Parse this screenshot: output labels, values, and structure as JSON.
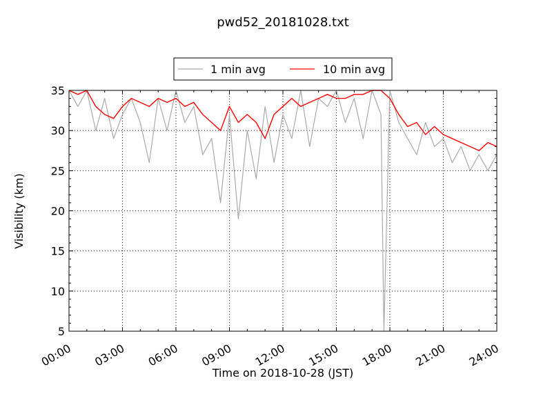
{
  "chart_data": {
    "type": "line",
    "title": "pwd52_20181028.txt",
    "xlabel": "Time on 2018-10-28 (JST)",
    "ylabel": "Visibility (km)",
    "xlim": [
      "2018-10-28 00:00",
      "2018-10-29 00:00"
    ],
    "ylim": [
      5,
      35
    ],
    "x_ticks": [
      "00:00",
      "03:00",
      "06:00",
      "09:00",
      "12:00",
      "15:00",
      "18:00",
      "21:00",
      "24:00"
    ],
    "y_ticks": [
      5,
      10,
      15,
      20,
      25,
      30,
      35
    ],
    "grid": true,
    "legend_position": "top-center",
    "series": [
      {
        "name": "1 min avg",
        "color": "#a9a9a9",
        "x": [
          "00:00",
          "00:30",
          "01:00",
          "01:30",
          "02:00",
          "02:30",
          "03:00",
          "03:30",
          "04:00",
          "04:30",
          "05:00",
          "05:30",
          "06:00",
          "06:30",
          "07:00",
          "07:30",
          "08:00",
          "08:30",
          "09:00",
          "09:30",
          "10:00",
          "10:30",
          "11:00",
          "11:30",
          "12:00",
          "12:30",
          "13:00",
          "13:30",
          "14:00",
          "14:30",
          "15:00",
          "15:30",
          "16:00",
          "16:30",
          "17:00",
          "17:30",
          "17:40",
          "18:00",
          "18:30",
          "19:00",
          "19:30",
          "20:00",
          "20:30",
          "21:00",
          "21:30",
          "22:00",
          "22:30",
          "23:00",
          "23:30",
          "24:00"
        ],
        "y": [
          35,
          33,
          35,
          30,
          34,
          29,
          32,
          34,
          31,
          26,
          34,
          30,
          35,
          31,
          33,
          27,
          29,
          21,
          32,
          19,
          30,
          24,
          33,
          26,
          32,
          29,
          35,
          28,
          34,
          33,
          35,
          31,
          34,
          29,
          35,
          32,
          5,
          35,
          31,
          29,
          27,
          31,
          28,
          29,
          26,
          28,
          25,
          27,
          25,
          27
        ]
      },
      {
        "name": "10 min avg",
        "color": "#ff0000",
        "x": [
          "00:00",
          "00:30",
          "01:00",
          "01:30",
          "02:00",
          "02:30",
          "03:00",
          "03:30",
          "04:00",
          "04:30",
          "05:00",
          "05:30",
          "06:00",
          "06:30",
          "07:00",
          "07:30",
          "08:00",
          "08:30",
          "09:00",
          "09:30",
          "10:00",
          "10:30",
          "11:00",
          "11:30",
          "12:00",
          "12:30",
          "13:00",
          "13:30",
          "14:00",
          "14:30",
          "15:00",
          "15:30",
          "16:00",
          "16:30",
          "17:00",
          "17:30",
          "18:00",
          "18:30",
          "19:00",
          "19:30",
          "20:00",
          "20:30",
          "21:00",
          "21:30",
          "22:00",
          "22:30",
          "23:00",
          "23:30",
          "24:00"
        ],
        "y": [
          35,
          34.5,
          35,
          33,
          32,
          31.5,
          33,
          34,
          33.5,
          33,
          34,
          33.5,
          34,
          33,
          33.5,
          32,
          31,
          30,
          33,
          31,
          32,
          31,
          29,
          32,
          33,
          34,
          33,
          33.5,
          34,
          34.5,
          34,
          34,
          34.5,
          34.5,
          35,
          35,
          34,
          32,
          30.5,
          31,
          29.5,
          30.5,
          29.5,
          29,
          28.5,
          28,
          27.5,
          28.5,
          28
        ]
      }
    ]
  }
}
